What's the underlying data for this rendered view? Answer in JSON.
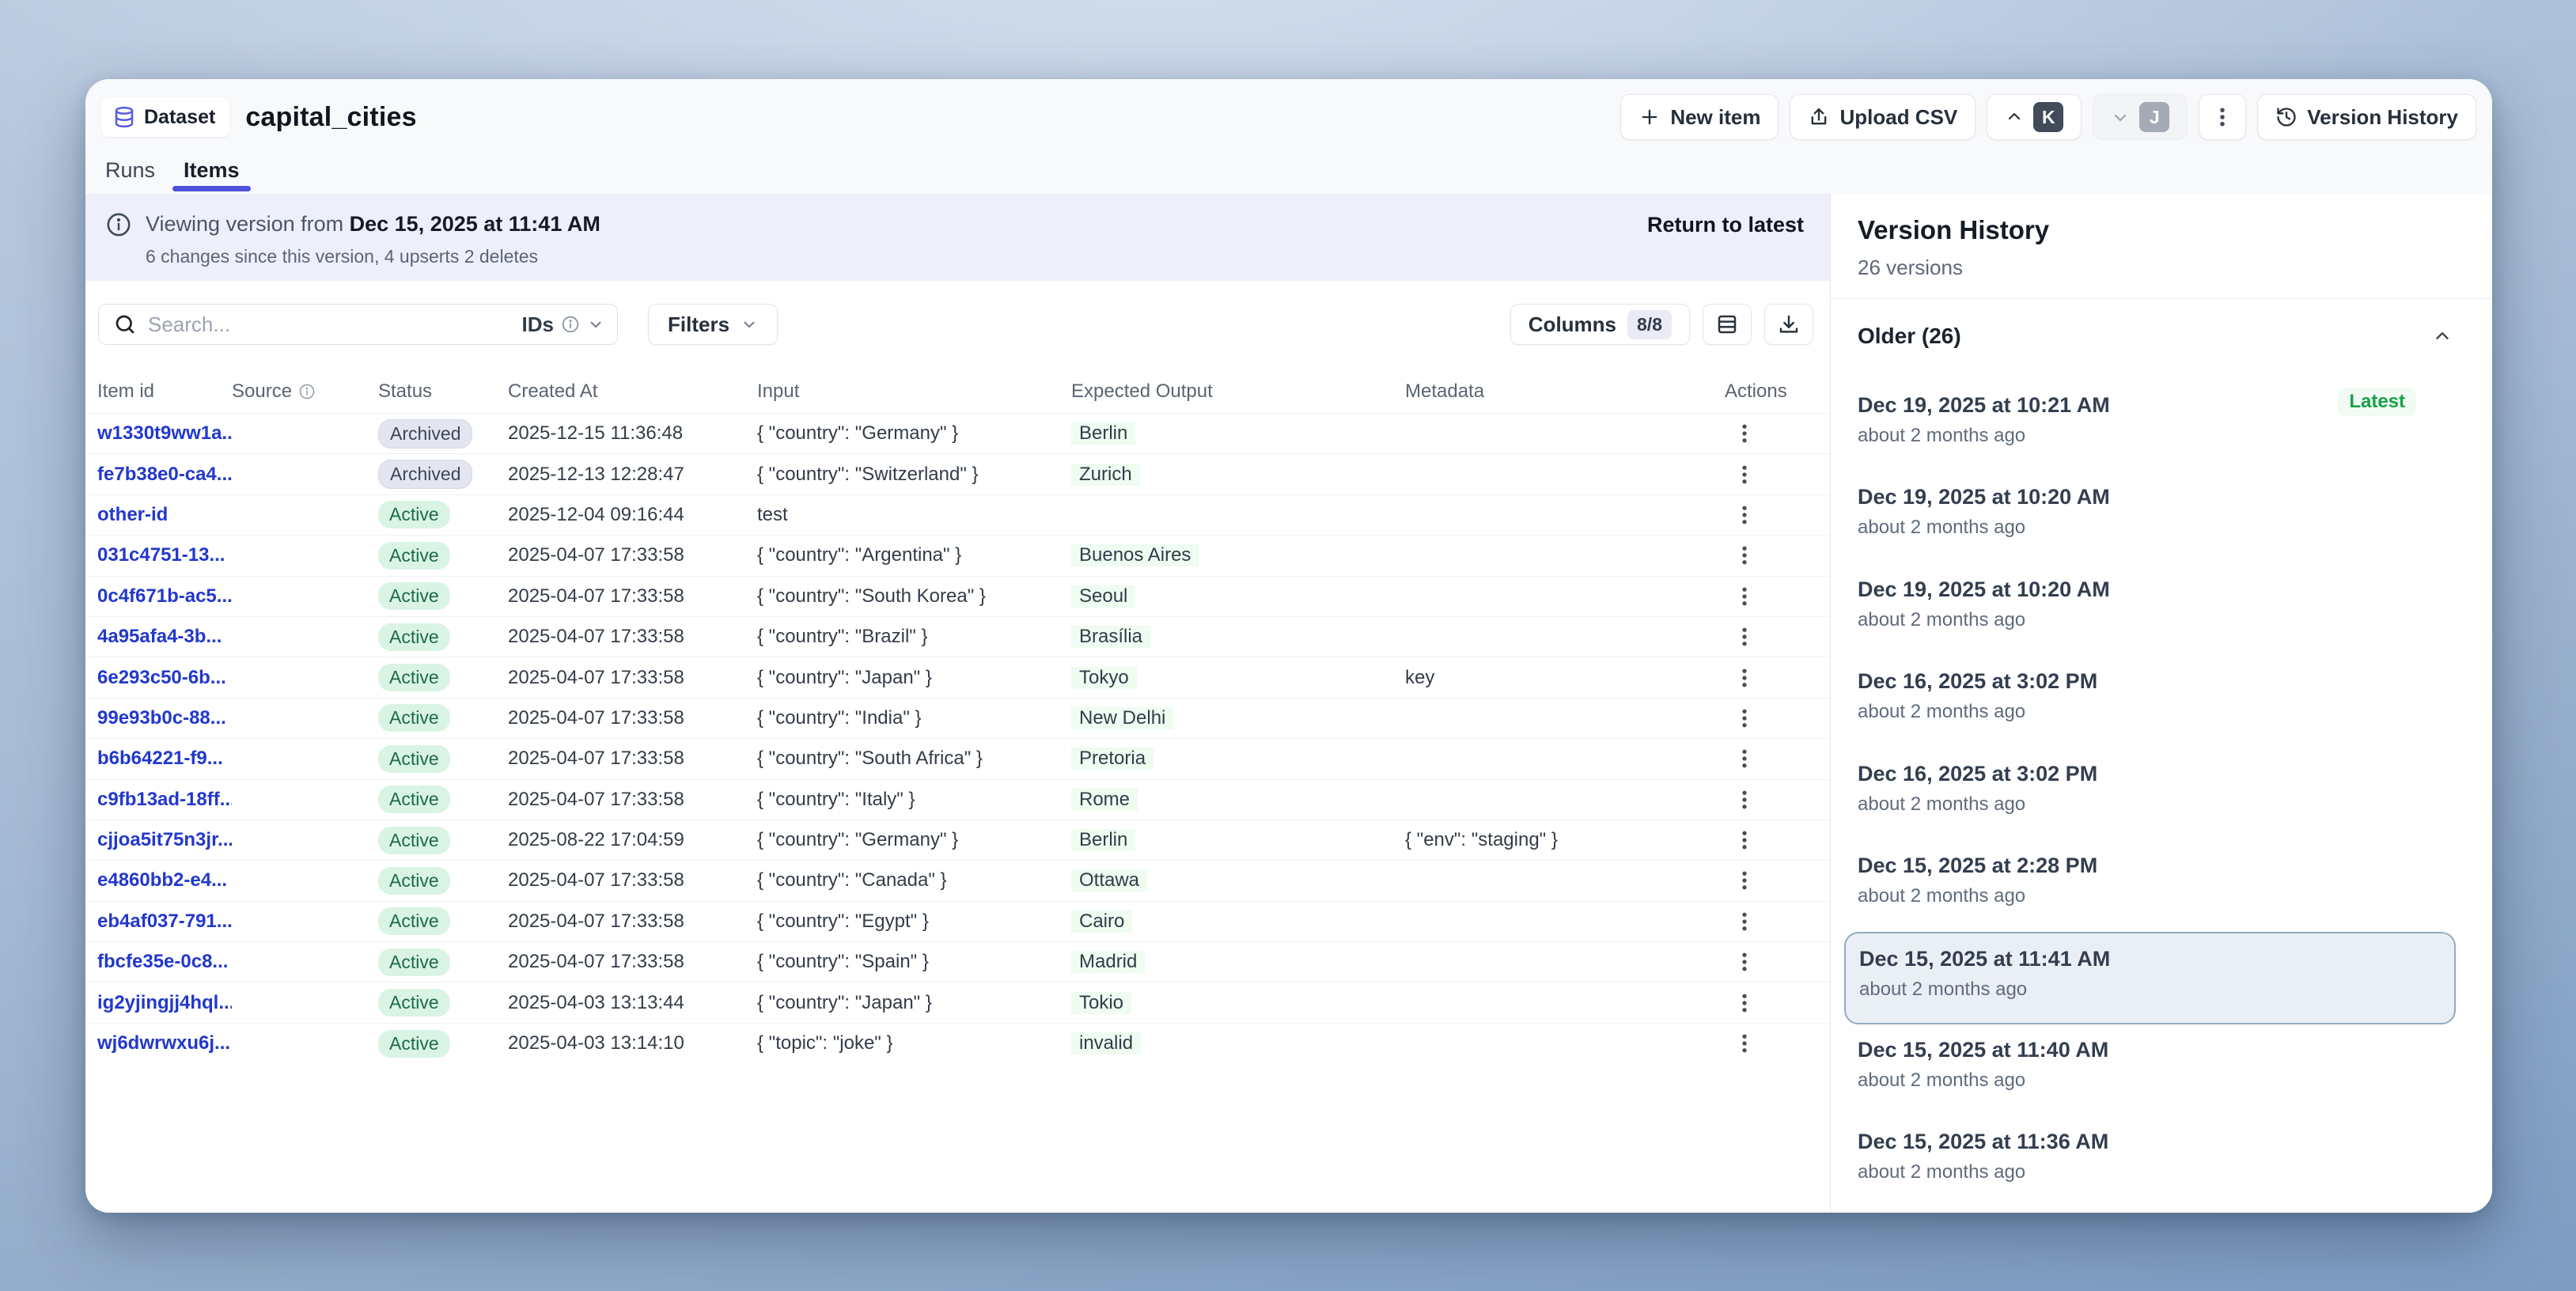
{
  "header": {
    "entity_label": "Dataset",
    "title": "capital_cities",
    "new_item_label": "New item",
    "upload_csv_label": "Upload CSV",
    "version_history_label": "Version History",
    "avatar_k": "K",
    "avatar_j": "J"
  },
  "tabs": [
    {
      "label": "Runs",
      "active": false
    },
    {
      "label": "Items",
      "active": true
    }
  ],
  "banner": {
    "prefix": "Viewing version from",
    "version_date": "Dec 15, 2025 at 11:41 AM",
    "subtitle": "6 changes since this version, 4 upserts 2 deletes",
    "action": "Return to latest"
  },
  "toolbar": {
    "search_placeholder": "Search...",
    "ids_label": "IDs",
    "filters_label": "Filters",
    "columns_label": "Columns",
    "columns_badge": "8/8"
  },
  "table": {
    "headers": [
      "Item id",
      "Source",
      "Status",
      "Created At",
      "Input",
      "Expected Output",
      "Metadata",
      "Actions"
    ],
    "rows": [
      {
        "id": "w1330t9ww1a...",
        "source": "",
        "status": "Archived",
        "created_at": "2025-12-15 11:36:48",
        "input": "{ \"country\": \"Germany\" }",
        "expected_output": "Berlin",
        "metadata": ""
      },
      {
        "id": "fe7b38e0-ca4...",
        "source": "",
        "status": "Archived",
        "created_at": "2025-12-13 12:28:47",
        "input": "{ \"country\": \"Switzerland\" }",
        "expected_output": "Zurich",
        "metadata": ""
      },
      {
        "id": "other-id",
        "source": "",
        "status": "Active",
        "created_at": "2025-12-04 09:16:44",
        "input": "test",
        "expected_output": "",
        "metadata": ""
      },
      {
        "id": "031c4751-13...",
        "source": "",
        "status": "Active",
        "created_at": "2025-04-07 17:33:58",
        "input": "{ \"country\": \"Argentina\" }",
        "expected_output": "Buenos Aires",
        "metadata": ""
      },
      {
        "id": "0c4f671b-ac5...",
        "source": "",
        "status": "Active",
        "created_at": "2025-04-07 17:33:58",
        "input": "{ \"country\": \"South Korea\" }",
        "expected_output": "Seoul",
        "metadata": ""
      },
      {
        "id": "4a95afa4-3b...",
        "source": "",
        "status": "Active",
        "created_at": "2025-04-07 17:33:58",
        "input": "{ \"country\": \"Brazil\" }",
        "expected_output": "Brasília",
        "metadata": ""
      },
      {
        "id": "6e293c50-6b...",
        "source": "",
        "status": "Active",
        "created_at": "2025-04-07 17:33:58",
        "input": "{ \"country\": \"Japan\" }",
        "expected_output": "Tokyo",
        "metadata": "key"
      },
      {
        "id": "99e93b0c-88...",
        "source": "",
        "status": "Active",
        "created_at": "2025-04-07 17:33:58",
        "input": "{ \"country\": \"India\" }",
        "expected_output": "New Delhi",
        "metadata": ""
      },
      {
        "id": "b6b64221-f9...",
        "source": "",
        "status": "Active",
        "created_at": "2025-04-07 17:33:58",
        "input": "{ \"country\": \"South Africa\" }",
        "expected_output": "Pretoria",
        "metadata": ""
      },
      {
        "id": "c9fb13ad-18ff...",
        "source": "",
        "status": "Active",
        "created_at": "2025-04-07 17:33:58",
        "input": "{ \"country\": \"Italy\" }",
        "expected_output": "Rome",
        "metadata": ""
      },
      {
        "id": "cjjoa5it75n3jr...",
        "source": "",
        "status": "Active",
        "created_at": "2025-08-22 17:04:59",
        "input": "{ \"country\": \"Germany\" }",
        "expected_output": "Berlin",
        "metadata": "{ \"env\": \"staging\" }"
      },
      {
        "id": "e4860bb2-e4...",
        "source": "",
        "status": "Active",
        "created_at": "2025-04-07 17:33:58",
        "input": "{ \"country\": \"Canada\" }",
        "expected_output": "Ottawa",
        "metadata": ""
      },
      {
        "id": "eb4af037-791...",
        "source": "",
        "status": "Active",
        "created_at": "2025-04-07 17:33:58",
        "input": "{ \"country\": \"Egypt\" }",
        "expected_output": "Cairo",
        "metadata": ""
      },
      {
        "id": "fbcfe35e-0c8...",
        "source": "",
        "status": "Active",
        "created_at": "2025-04-07 17:33:58",
        "input": "{ \"country\": \"Spain\" }",
        "expected_output": "Madrid",
        "metadata": ""
      },
      {
        "id": "ig2yjingjj4hql...",
        "source": "",
        "status": "Active",
        "created_at": "2025-04-03 13:13:44",
        "input": "{ \"country\": \"Japan\" }",
        "expected_output": "Tokio",
        "metadata": ""
      },
      {
        "id": "wj6dwrwxu6j...",
        "source": "",
        "status": "Active",
        "created_at": "2025-04-03 13:14:10",
        "input": "{ \"topic\": \"joke\" }",
        "expected_output": "invalid",
        "metadata": ""
      }
    ]
  },
  "version_history": {
    "title": "Version History",
    "count_label": "26 versions",
    "group_label": "Older (26)",
    "latest_badge": "Latest",
    "entries": [
      {
        "date": "Dec 19, 2025 at 10:21 AM",
        "ago": "about 2 months ago",
        "latest": true,
        "selected": false
      },
      {
        "date": "Dec 19, 2025 at 10:20 AM",
        "ago": "about 2 months ago",
        "latest": false,
        "selected": false
      },
      {
        "date": "Dec 19, 2025 at 10:20 AM",
        "ago": "about 2 months ago",
        "latest": false,
        "selected": false
      },
      {
        "date": "Dec 16, 2025 at 3:02 PM",
        "ago": "about 2 months ago",
        "latest": false,
        "selected": false
      },
      {
        "date": "Dec 16, 2025 at 3:02 PM",
        "ago": "about 2 months ago",
        "latest": false,
        "selected": false
      },
      {
        "date": "Dec 15, 2025 at 2:28 PM",
        "ago": "about 2 months ago",
        "latest": false,
        "selected": false
      },
      {
        "date": "Dec 15, 2025 at 11:41 AM",
        "ago": "about 2 months ago",
        "latest": false,
        "selected": true
      },
      {
        "date": "Dec 15, 2025 at 11:40 AM",
        "ago": "about 2 months ago",
        "latest": false,
        "selected": false
      },
      {
        "date": "Dec 15, 2025 at 11:36 AM",
        "ago": "about 2 months ago",
        "latest": false,
        "selected": false
      }
    ]
  },
  "icons": {
    "chip": "database-icon",
    "new_item": "plus-icon",
    "upload": "upload-icon",
    "more": "kebab-icon",
    "version_history": "history-clock-icon",
    "banner": "info-icon",
    "search": "search-icon",
    "toolbar_extra": [
      "table-rows-icon",
      "download-icon"
    ],
    "group_toggle": "chevron-up-icon"
  },
  "colors": {
    "accent_indigo": "#4c52d9",
    "link_blue": "#2238cc",
    "active_badge_bg": "#d9f4e4",
    "active_badge_text": "#1e6b43",
    "archived_badge_bg": "#e3e6f0",
    "archived_badge_text": "#3d4759",
    "latest_green": "#17a24a",
    "banner_bg": "#edeffa",
    "selected_version_border": "#96a9c2",
    "background_top": "#b9c9de",
    "background_bottom": "#7e9cc2"
  }
}
